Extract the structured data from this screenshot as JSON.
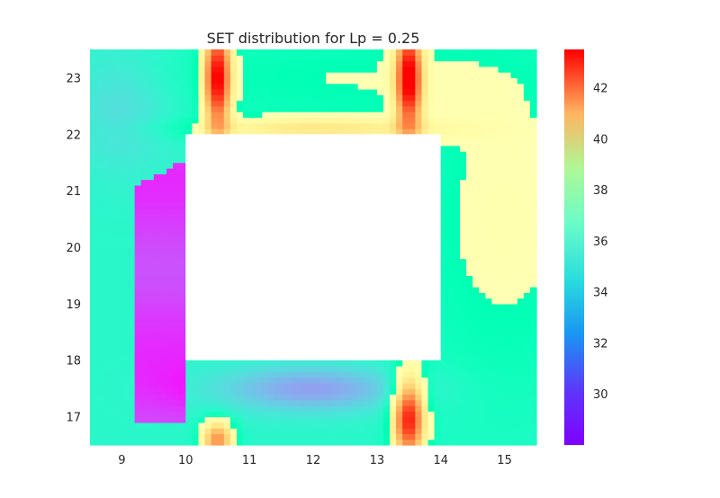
{
  "chart_data": {
    "type": "heatmap",
    "title": "SET distribution for Lp = 0.25",
    "xlabel": "",
    "ylabel": "",
    "xlim": [
      8.5,
      15.5
    ],
    "ylim": [
      16.5,
      23.5
    ],
    "x_ticks": [
      "9",
      "10",
      "11",
      "12",
      "13",
      "14",
      "15"
    ],
    "y_ticks": [
      "17",
      "18",
      "19",
      "20",
      "21",
      "22",
      "23"
    ],
    "empty_region": {
      "x": [
        10,
        14
      ],
      "y": [
        18,
        22
      ]
    },
    "colorbar": {
      "colormap": "rainbow",
      "range": [
        28,
        43.5
      ],
      "ticks": [
        "30",
        "32",
        "34",
        "36",
        "38",
        "40",
        "42"
      ]
    },
    "grid": false,
    "field_notes": "Hot bands near x=10.5 and x=13.5 at top and bottom edges (~43); cool region along left inner wall (~29) and below hole (~31-32); background ~34-37."
  }
}
